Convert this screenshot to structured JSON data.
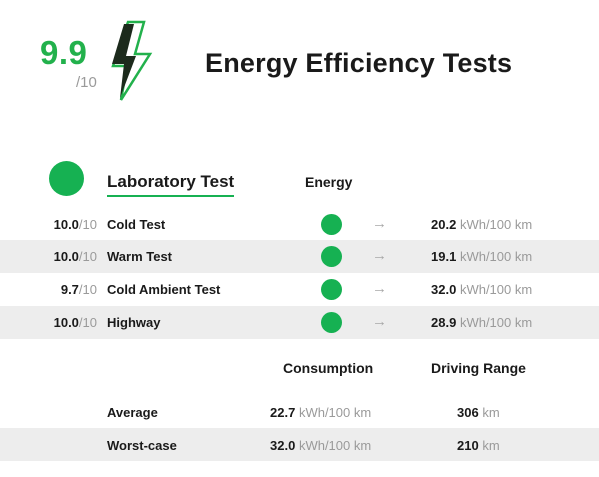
{
  "header": {
    "score": "9.9",
    "score_denominator": "/10",
    "title": "Energy Efficiency Tests",
    "bolt_icon": "lightning-bolt-icon"
  },
  "colors": {
    "accent_green": "#16b152",
    "score_green": "#22b14c",
    "row_shade": "#ededed",
    "muted_text": "#9a9a9a"
  },
  "lab": {
    "title": "Laboratory Test",
    "energy_header": "Energy",
    "arrow_glyph": "→",
    "tests": [
      {
        "score": "10.0",
        "den": "/10",
        "name": "Cold Test",
        "value": "20.2",
        "unit": "kWh/100 km"
      },
      {
        "score": "10.0",
        "den": "/10",
        "name": "Warm Test",
        "value": "19.1",
        "unit": "kWh/100 km"
      },
      {
        "score": "9.7",
        "den": "/10",
        "name": "Cold Ambient Test",
        "value": "32.0",
        "unit": "kWh/100 km"
      },
      {
        "score": "10.0",
        "den": "/10",
        "name": "Highway",
        "value": "28.9",
        "unit": "kWh/100 km"
      }
    ]
  },
  "summary": {
    "consumption_header": "Consumption",
    "range_header": "Driving Range",
    "rows": [
      {
        "label": "Average",
        "consumption": "22.7",
        "consumption_unit": "kWh/100 km",
        "range": "306",
        "range_unit": "km"
      },
      {
        "label": "Worst-case",
        "consumption": "32.0",
        "consumption_unit": "kWh/100 km",
        "range": "210",
        "range_unit": "km"
      }
    ]
  }
}
